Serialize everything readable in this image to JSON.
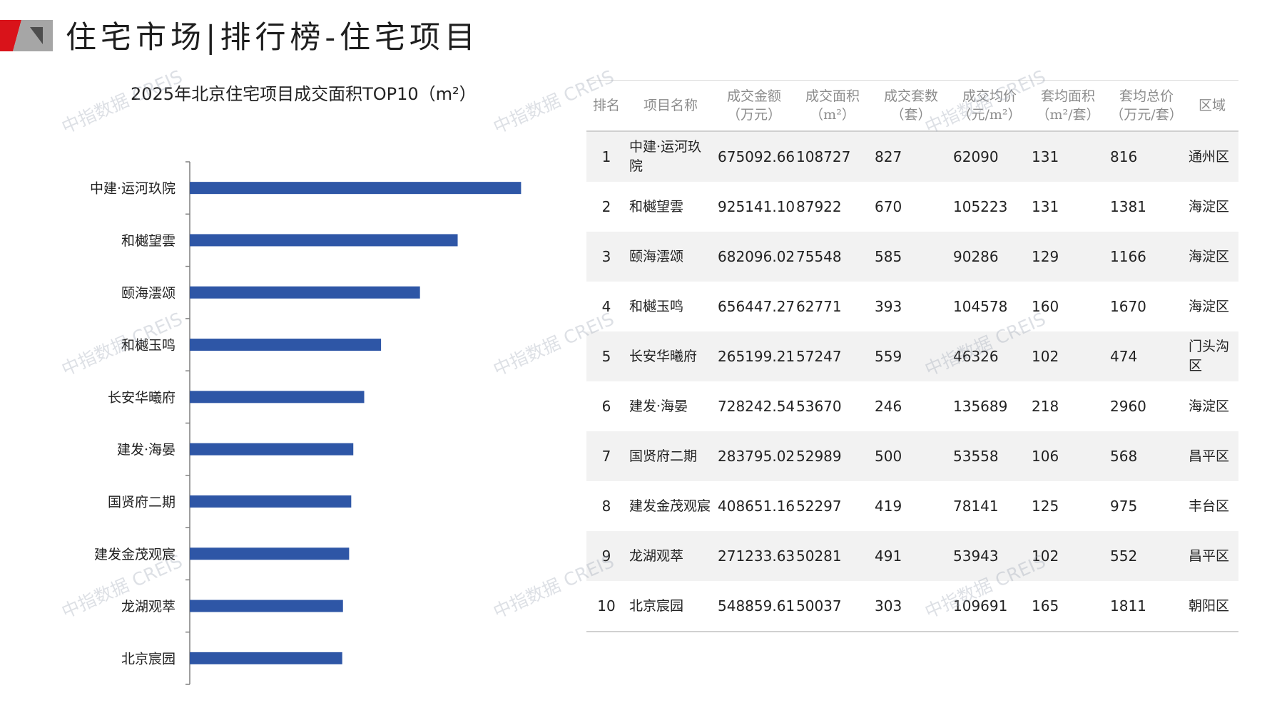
{
  "header": {
    "title": "住宅市场|排行榜-住宅项目",
    "accent_colors": [
      "#d9131a",
      "#a6a6a6"
    ]
  },
  "watermark": {
    "text": "中指数据 CREIS"
  },
  "chart_data": {
    "type": "bar",
    "orientation": "horizontal",
    "title": "2025年北京住宅项目成交面积TOP10（m²）",
    "categories": [
      "中建·运河玖院",
      "和樾望雲",
      "颐海澐颂",
      "和樾玉鸣",
      "长安华曦府",
      "建发·海晏",
      "国贤府二期",
      "建发金茂观宸",
      "龙湖观萃",
      "北京宸园"
    ],
    "values": [
      108727,
      87922,
      75548,
      62771,
      57247,
      53670,
      52989,
      52297,
      50281,
      50037
    ],
    "bar_color": "#2e56a6",
    "xlim": [
      0,
      118000
    ],
    "grid": false,
    "legend": "none"
  },
  "table": {
    "headers": [
      [
        "排名"
      ],
      [
        "项目名称"
      ],
      [
        "成交金额",
        "（万元）"
      ],
      [
        "成交面积",
        "（m²）"
      ],
      [
        "成交套数",
        "（套）"
      ],
      [
        "成交均价",
        "（元/m²）"
      ],
      [
        "套均面积",
        "（m²/套）"
      ],
      [
        "套均总价",
        "（万元/套）"
      ],
      [
        "区域"
      ]
    ],
    "rows": [
      [
        "1",
        "中建·运河玖院",
        "675092.66",
        "108727",
        "827",
        "62090",
        "131",
        "816",
        "通州区"
      ],
      [
        "2",
        "和樾望雲",
        "925141.10",
        "87922",
        "670",
        "105223",
        "131",
        "1381",
        "海淀区"
      ],
      [
        "3",
        "颐海澐颂",
        "682096.02",
        "75548",
        "585",
        "90286",
        "129",
        "1166",
        "海淀区"
      ],
      [
        "4",
        "和樾玉鸣",
        "656447.27",
        "62771",
        "393",
        "104578",
        "160",
        "1670",
        "海淀区"
      ],
      [
        "5",
        "长安华曦府",
        "265199.21",
        "57247",
        "559",
        "46326",
        "102",
        "474",
        "门头沟区"
      ],
      [
        "6",
        "建发·海晏",
        "728242.54",
        "53670",
        "246",
        "135689",
        "218",
        "2960",
        "海淀区"
      ],
      [
        "7",
        "国贤府二期",
        "283795.02",
        "52989",
        "500",
        "53558",
        "106",
        "568",
        "昌平区"
      ],
      [
        "8",
        "建发金茂观宸",
        "408651.16",
        "52297",
        "419",
        "78141",
        "125",
        "975",
        "丰台区"
      ],
      [
        "9",
        "龙湖观萃",
        "271233.63",
        "50281",
        "491",
        "53943",
        "102",
        "552",
        "昌平区"
      ],
      [
        "10",
        "北京宸园",
        "548859.61",
        "50037",
        "303",
        "109691",
        "165",
        "1811",
        "朝阳区"
      ]
    ]
  }
}
